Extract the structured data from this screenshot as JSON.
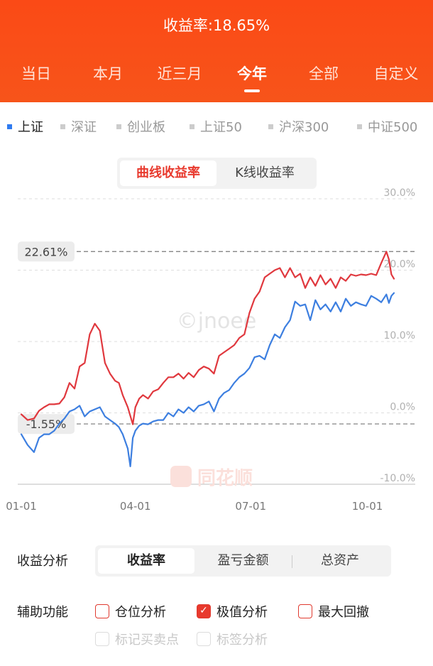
{
  "header": {
    "title": "收益率:18.65%"
  },
  "tabs": [
    {
      "label": "当日"
    },
    {
      "label": "本月"
    },
    {
      "label": "近三月"
    },
    {
      "label": "今年"
    },
    {
      "label": "全部"
    },
    {
      "label": "自定义"
    }
  ],
  "active_tab": 3,
  "indices": [
    {
      "label": "上证"
    },
    {
      "label": "深证"
    },
    {
      "label": "创业板"
    },
    {
      "label": "上证50"
    },
    {
      "label": "沪深300"
    },
    {
      "label": "中证500"
    }
  ],
  "chart_mode": {
    "options": [
      "曲线收益率",
      "K线收益率"
    ],
    "active": 0
  },
  "chart_data": {
    "type": "line",
    "ylim": [
      -10,
      30
    ],
    "y_ticks": [
      "30.0%",
      "20.0%",
      "10.0%",
      "0.0%",
      "-10.0%"
    ],
    "y_tick_values": [
      30,
      20,
      10,
      0,
      -10
    ],
    "x_ticks": [
      "01-01",
      "04-01",
      "07-01",
      "10-01"
    ],
    "x_tick_values": [
      0,
      90,
      181,
      273
    ],
    "max_label": "22.61%",
    "max_value": 22.61,
    "min_label": "-1.55%",
    "min_value": -1.55,
    "watermark": "©jnoee",
    "logo_text": "同花顺",
    "series": [
      {
        "color": "#e0383e",
        "x": [
          0,
          5,
          10,
          14,
          18,
          22,
          26,
          30,
          34,
          38,
          42,
          46,
          50,
          54,
          58,
          62,
          66,
          70,
          74,
          77,
          80,
          84,
          88,
          90,
          93,
          96,
          100,
          104,
          108,
          112,
          116,
          120,
          124,
          128,
          132,
          136,
          140,
          144,
          148,
          152,
          156,
          160,
          164,
          168,
          172,
          176,
          180,
          184,
          188,
          192,
          196,
          200,
          204,
          208,
          212,
          216,
          220,
          224,
          228,
          232,
          236,
          240,
          244,
          248,
          252,
          256,
          260,
          264,
          268,
          272,
          276,
          280,
          284,
          288,
          290,
          292,
          294
        ],
        "y": [
          -0.2,
          -1.0,
          -0.8,
          0.3,
          0.8,
          1.2,
          1.2,
          1.3,
          2.2,
          4.2,
          3.4,
          6.5,
          7.0,
          11.0,
          12.5,
          11.5,
          7.0,
          5.5,
          4.5,
          4.2,
          2.5,
          0.8,
          -1.6,
          0.8,
          2.0,
          2.5,
          2.0,
          3.0,
          3.3,
          4.2,
          5.0,
          5.0,
          5.5,
          4.8,
          5.6,
          5.0,
          6.0,
          6.5,
          6.2,
          5.5,
          8.0,
          8.5,
          9.0,
          9.5,
          10.5,
          11.0,
          14.0,
          16.0,
          17.0,
          19.0,
          19.5,
          20.0,
          20.3,
          19.0,
          20.3,
          19.0,
          19.5,
          17.5,
          19.0,
          17.8,
          19.3,
          18.0,
          18.8,
          17.5,
          19.0,
          18.5,
          19.4,
          19.2,
          19.4,
          19.3,
          19.5,
          19.3,
          21.0,
          22.6,
          21.5,
          19.4,
          18.8
        ]
      },
      {
        "color": "#3d7fe0",
        "x": [
          0,
          5,
          10,
          14,
          18,
          22,
          26,
          30,
          34,
          38,
          42,
          46,
          50,
          54,
          58,
          62,
          66,
          70,
          74,
          77,
          80,
          84,
          86,
          88,
          90,
          93,
          96,
          100,
          104,
          108,
          112,
          116,
          120,
          124,
          128,
          132,
          136,
          140,
          144,
          148,
          152,
          156,
          160,
          164,
          168,
          172,
          176,
          180,
          184,
          188,
          192,
          196,
          200,
          204,
          208,
          212,
          216,
          220,
          224,
          228,
          232,
          236,
          240,
          244,
          248,
          252,
          256,
          260,
          264,
          268,
          272,
          276,
          280,
          284,
          288,
          290,
          292,
          294
        ],
        "y": [
          -3.0,
          -4.5,
          -5.5,
          -3.5,
          -3.0,
          -3.0,
          -2.5,
          -1.5,
          -0.8,
          0.2,
          0.5,
          1.0,
          -0.5,
          0.2,
          0.5,
          0.8,
          -0.5,
          -1.0,
          -1.5,
          -2.0,
          -3.0,
          -5.0,
          -7.5,
          -3.5,
          -2.5,
          -1.8,
          -1.5,
          -1.6,
          -1.2,
          -1.0,
          -1.0,
          0.0,
          -0.5,
          0.5,
          0.0,
          0.8,
          0.2,
          1.0,
          1.2,
          1.6,
          0.2,
          2.0,
          2.8,
          3.2,
          4.2,
          5.0,
          5.5,
          6.3,
          7.8,
          8.0,
          7.5,
          9.5,
          11.0,
          10.5,
          12.0,
          13.0,
          15.6,
          15.0,
          15.2,
          13.0,
          15.8,
          14.5,
          15.2,
          14.2,
          15.5,
          14.2,
          16.0,
          15.0,
          15.5,
          15.2,
          15.0,
          16.4,
          16.0,
          15.5,
          16.6,
          15.4,
          16.4,
          16.8
        ]
      }
    ]
  },
  "analysis": {
    "label": "收益分析",
    "options": [
      "收益率",
      "盈亏金额",
      "总资产"
    ],
    "active": 0
  },
  "aux": {
    "label": "辅助功能",
    "items": [
      {
        "label": "仓位分析",
        "checked": false,
        "disabled": false
      },
      {
        "label": "极值分析",
        "checked": true,
        "disabled": false
      },
      {
        "label": "最大回撤",
        "checked": false,
        "disabled": false
      },
      {
        "label": "标记买卖点",
        "checked": false,
        "disabled": true
      },
      {
        "label": "标签分析",
        "checked": false,
        "disabled": true
      }
    ]
  },
  "colors": {
    "brand": "#fb4a16",
    "red_line": "#e0383e",
    "blue_line": "#3d7fe0"
  }
}
